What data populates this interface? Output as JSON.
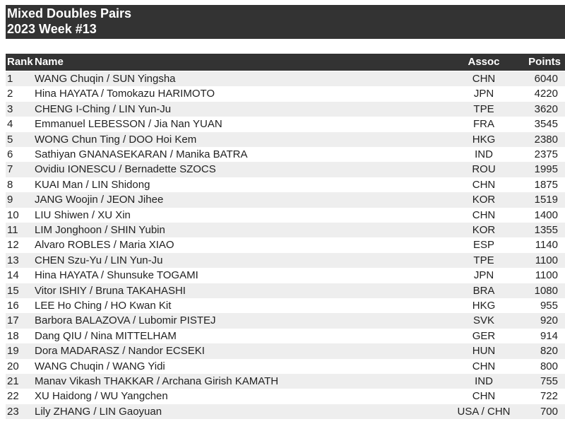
{
  "header": {
    "title": "Mixed Doubles Pairs",
    "subtitle": "2023 Week #13"
  },
  "table": {
    "columns": [
      "Rank",
      "Name",
      "Assoc",
      "Points"
    ],
    "rows": [
      [
        1,
        "WANG Chuqin / SUN Yingsha",
        "CHN",
        6040
      ],
      [
        2,
        "Hina HAYATA / Tomokazu HARIMOTO",
        "JPN",
        4220
      ],
      [
        3,
        "CHENG I-Ching / LIN Yun-Ju",
        "TPE",
        3620
      ],
      [
        4,
        "Emmanuel LEBESSON / Jia Nan YUAN",
        "FRA",
        3545
      ],
      [
        5,
        "WONG Chun Ting / DOO Hoi Kem",
        "HKG",
        2380
      ],
      [
        6,
        "Sathiyan GNANASEKARAN / Manika BATRA",
        "IND",
        2375
      ],
      [
        7,
        "Ovidiu IONESCU / Bernadette SZOCS",
        "ROU",
        1995
      ],
      [
        8,
        "KUAI Man / LIN Shidong",
        "CHN",
        1875
      ],
      [
        9,
        "JANG Woojin / JEON Jihee",
        "KOR",
        1519
      ],
      [
        10,
        "LIU Shiwen / XU Xin",
        "CHN",
        1400
      ],
      [
        11,
        "LIM Jonghoon / SHIN Yubin",
        "KOR",
        1355
      ],
      [
        12,
        "Alvaro ROBLES / Maria XIAO",
        "ESP",
        1140
      ],
      [
        13,
        "CHEN Szu-Yu / LIN Yun-Ju",
        "TPE",
        1100
      ],
      [
        14,
        "Hina HAYATA / Shunsuke TOGAMI",
        "JPN",
        1100
      ],
      [
        15,
        "Vitor ISHIY / Bruna TAKAHASHI",
        "BRA",
        1080
      ],
      [
        16,
        "LEE Ho Ching / HO Kwan Kit",
        "HKG",
        955
      ],
      [
        17,
        "Barbora BALAZOVA / Lubomir PISTEJ",
        "SVK",
        920
      ],
      [
        18,
        "Dang QIU / Nina MITTELHAM",
        "GER",
        914
      ],
      [
        19,
        "Dora MADARASZ / Nandor ECSEKI",
        "HUN",
        820
      ],
      [
        20,
        "WANG Chuqin / WANG Yidi",
        "CHN",
        800
      ],
      [
        21,
        "Manav Vikash THAKKAR / Archana Girish KAMATH",
        "IND",
        755
      ],
      [
        22,
        "XU Haidong / WU Yangchen",
        "CHN",
        722
      ],
      [
        23,
        "Lily ZHANG / LIN Gaoyuan",
        "USA / CHN",
        700
      ]
    ]
  }
}
